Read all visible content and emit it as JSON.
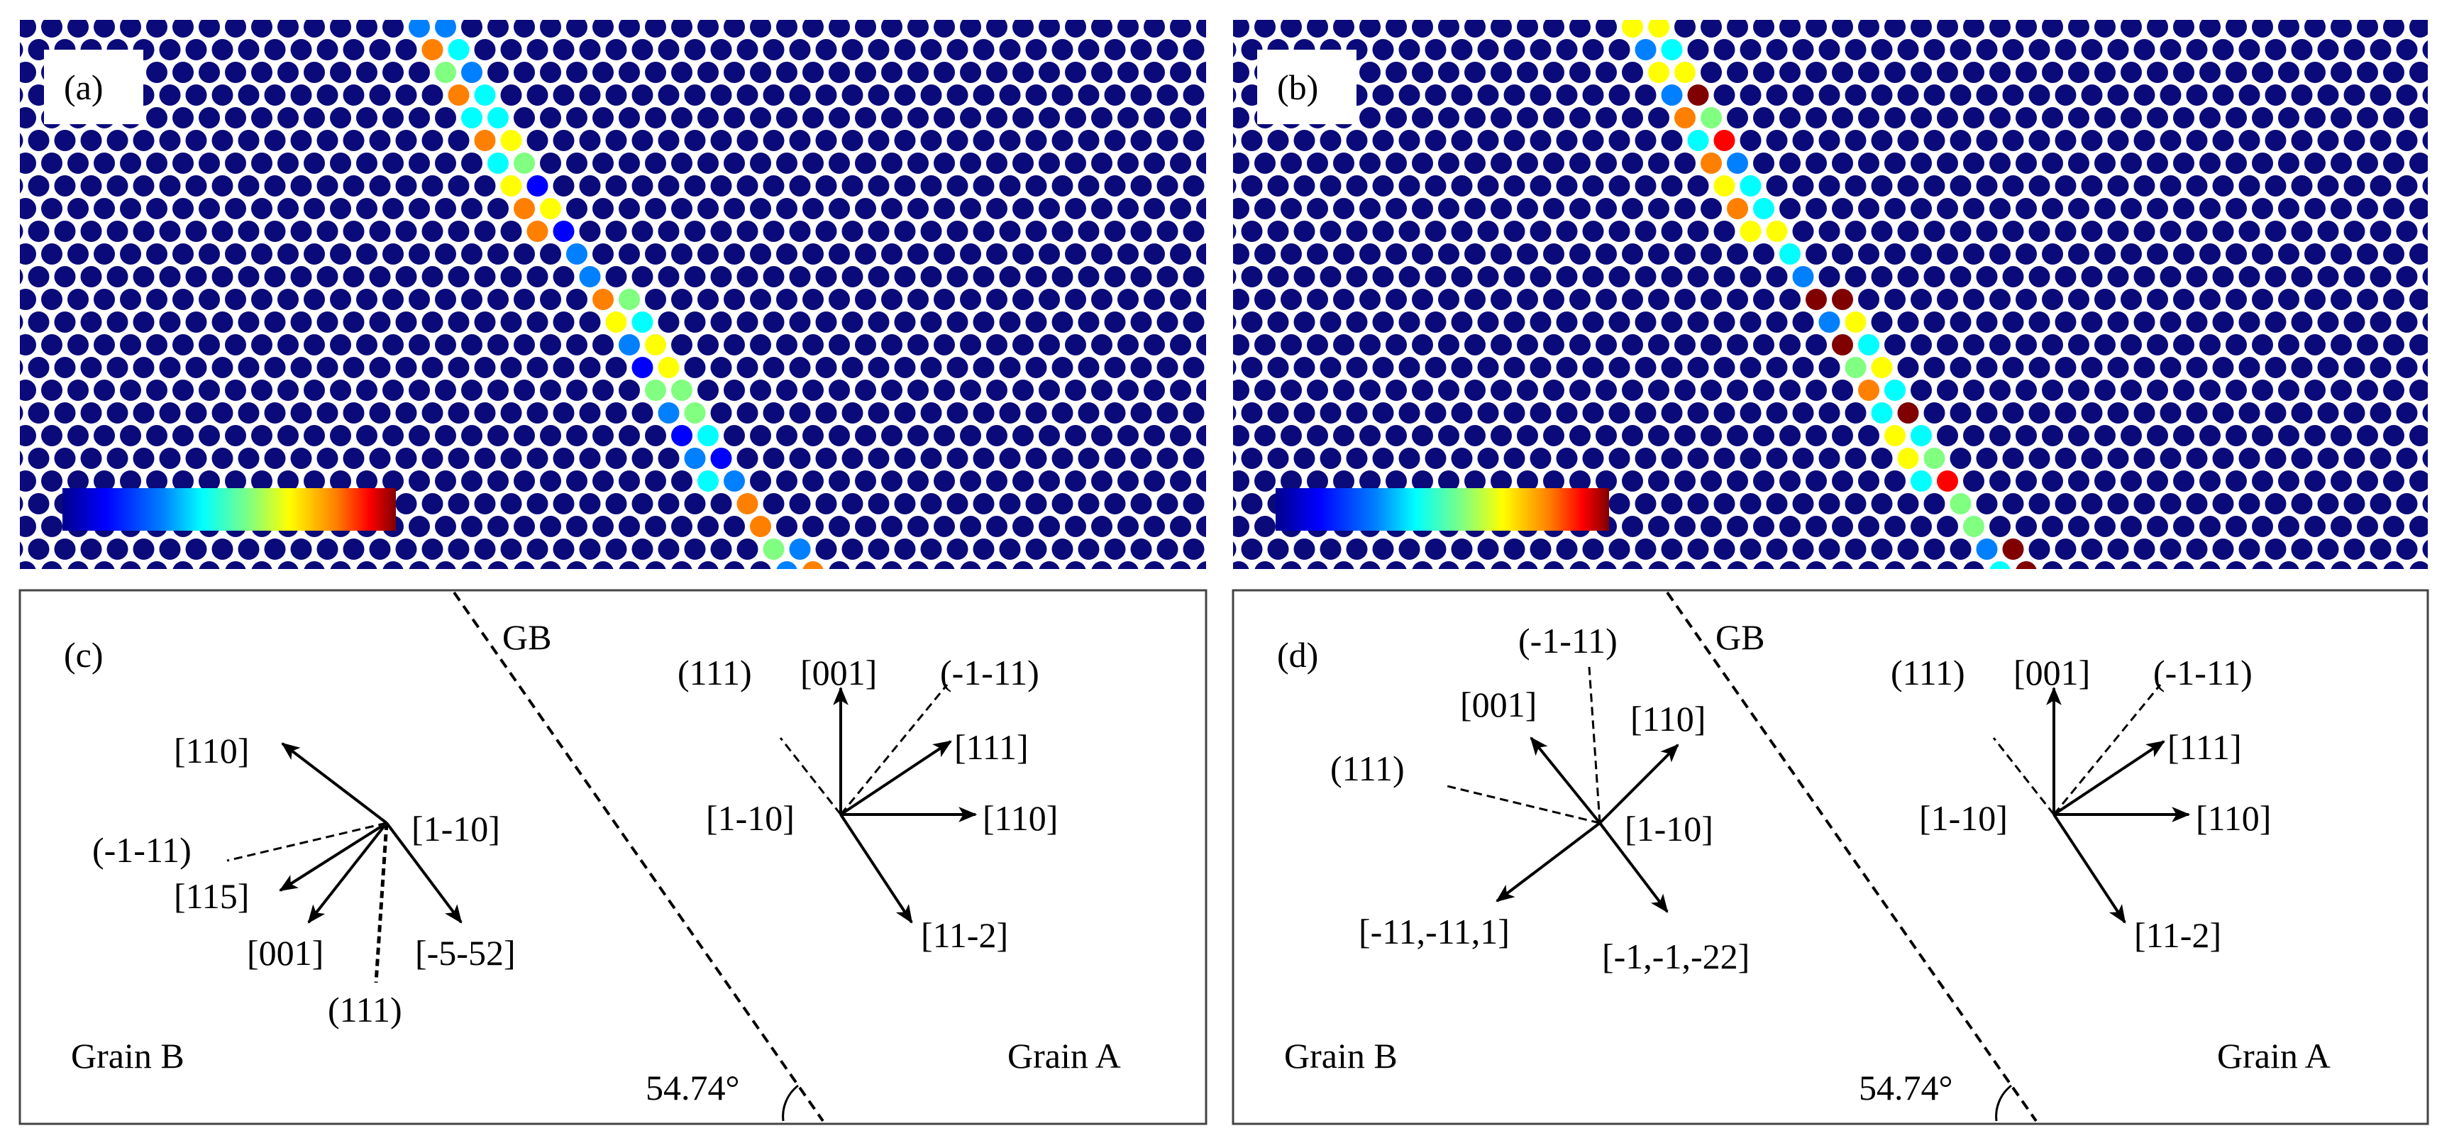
{
  "panels": {
    "a": {
      "label": "(a)"
    },
    "b": {
      "label": "(b)"
    },
    "c": {
      "label": "(c)",
      "gb_label": "GB",
      "angle_label": "54.74°",
      "grain_left": "Grain B",
      "grain_right": "Grain A",
      "grain_b_labels": {
        "center": "[1-10]",
        "v110": "[110]",
        "plane_m1m11": "(-1-11)",
        "v115": "[115]",
        "v001": "[001]",
        "v_m5m52": "[-5-52]",
        "plane_111": "(111)"
      },
      "grain_a_labels": {
        "center": "[1-10]",
        "plane_111": "(111)",
        "v001": "[001]",
        "plane_m1m11": "(-1-11)",
        "v111": "[111]",
        "v110": "[110]",
        "v11m2": "[11-2]"
      }
    },
    "d": {
      "label": "(d)",
      "gb_label": "GB",
      "angle_label": "54.74°",
      "grain_left": "Grain B",
      "grain_right": "Grain A",
      "grain_b_labels": {
        "center": "[1-10]",
        "plane_m1m11": "(-1-11)",
        "v001": "[001]",
        "v110": "[110]",
        "plane_111": "(111)",
        "v_m11m111": "[-11,-11,1]",
        "v_m1m1m22": "[-1,-1,-22]"
      },
      "grain_a_labels": {
        "center": "[1-10]",
        "plane_111": "(111)",
        "v001": "[001]",
        "plane_m1m11": "(-1-11)",
        "v111": "[111]",
        "v110": "[110]",
        "v11m2": "[11-2]"
      }
    }
  },
  "colors": {
    "bulk_atom": "#0a0a7a",
    "colormap": [
      "#00008f",
      "#0000ff",
      "#0080ff",
      "#00ffff",
      "#80ff80",
      "#ffff00",
      "#ff8000",
      "#ff0000",
      "#800000"
    ]
  }
}
